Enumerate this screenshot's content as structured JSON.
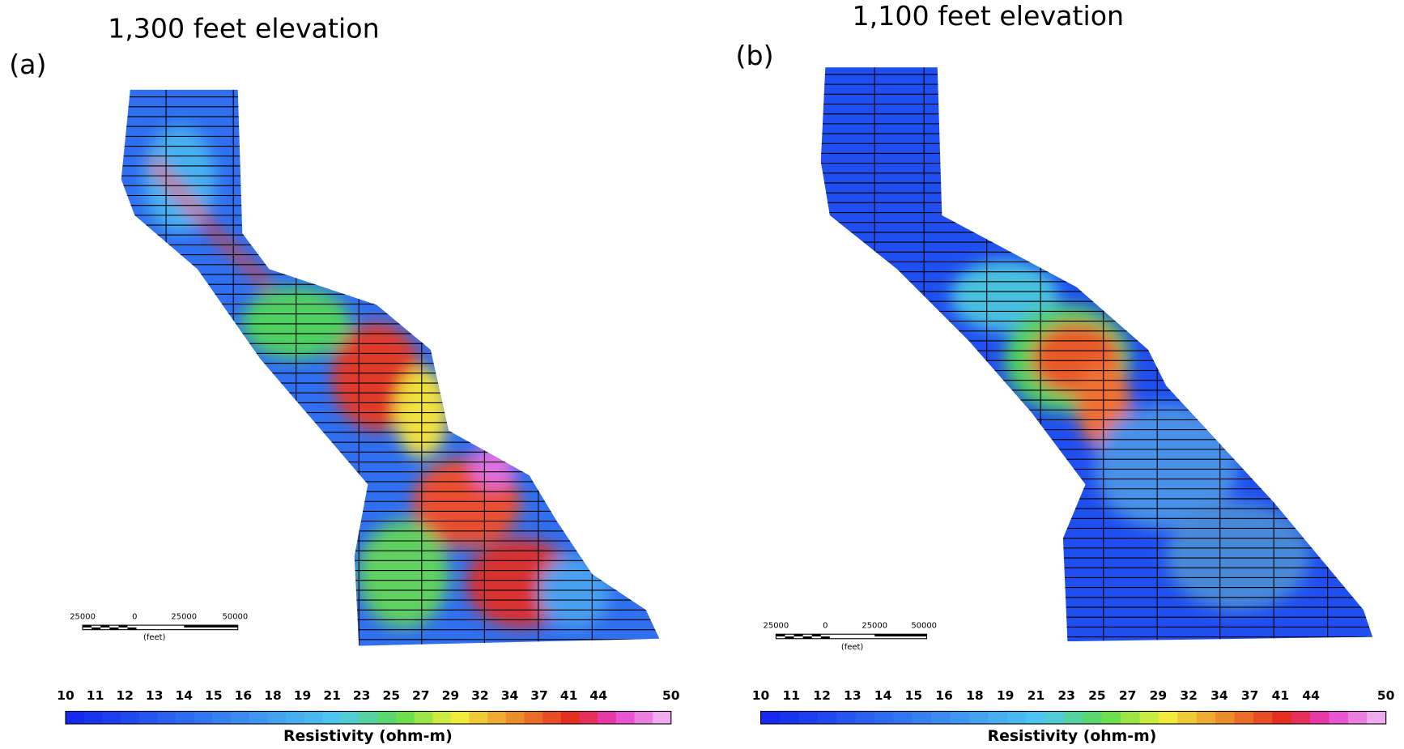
{
  "panels": [
    {
      "label": "(a)",
      "title": "1,300 feet elevation",
      "scale_bar": {
        "ticks": [
          "25000",
          "0",
          "25000",
          "50000"
        ],
        "unit": "(feet)"
      },
      "colorbar": {
        "ticks": [
          "10",
          "11",
          "12",
          "13",
          "14",
          "15",
          "16",
          "18",
          "19",
          "21",
          "23",
          "25",
          "27",
          "29",
          "32",
          "34",
          "37",
          "41",
          "44",
          "50"
        ],
        "title": "Resistivity (ohm-m)"
      }
    },
    {
      "label": "(b)",
      "title": "1,100 feet elevation",
      "scale_bar": {
        "ticks": [
          "25000",
          "0",
          "25000",
          "50000"
        ],
        "unit": "(feet)"
      },
      "colorbar": {
        "ticks": [
          "10",
          "11",
          "12",
          "13",
          "14",
          "15",
          "16",
          "18",
          "19",
          "21",
          "23",
          "25",
          "27",
          "29",
          "32",
          "34",
          "37",
          "41",
          "44",
          "50"
        ],
        "title": "Resistivity (ohm-m)"
      }
    }
  ]
}
